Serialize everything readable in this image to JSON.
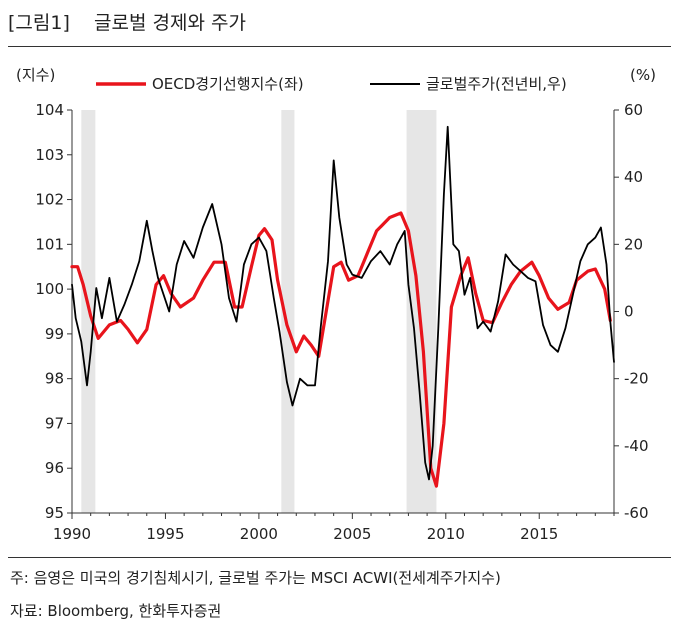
{
  "header": {
    "title": "[그림1]    글로벌 경제와 주가"
  },
  "notes": {
    "note": "주: 음영은 미국의 경기침체시기, 글로벌 주가는 MSCI ACWI(전세계주가지수)",
    "source": "자료: Bloomberg, 한화투자증권"
  },
  "chart_data": {
    "type": "line",
    "title": "글로벌 경제와 주가",
    "left_unit": "(지수)",
    "right_unit": "(%)",
    "x_ticks": [
      1990,
      1995,
      2000,
      2005,
      2010,
      2015
    ],
    "xlim": [
      1990,
      2019
    ],
    "ylim_left": [
      95,
      104
    ],
    "ylim_right": [
      -60,
      60
    ],
    "left_ticks": [
      95,
      96,
      97,
      98,
      99,
      100,
      101,
      102,
      103,
      104
    ],
    "right_ticks": [
      -60,
      -40,
      -20,
      0,
      20,
      40,
      60
    ],
    "legend_position": "top",
    "recession_shading": [
      [
        1990.5,
        1991.25
      ],
      [
        2001.2,
        2001.9
      ],
      [
        2007.9,
        2009.5
      ]
    ],
    "colors": {
      "oecd": "#e8141c",
      "stock": "#000000",
      "shade": "#e6e6e6"
    },
    "series": [
      {
        "name": "OECD경기선행지수(좌)",
        "axis": "left",
        "x": [
          1990,
          1990.3,
          1990.6,
          1991,
          1991.4,
          1992,
          1992.6,
          1993,
          1993.5,
          1994,
          1994.5,
          1994.9,
          1995.3,
          1995.8,
          1996.5,
          1997,
          1997.6,
          1998.2,
          1998.7,
          1999.1,
          1999.6,
          2000,
          2000.3,
          2000.7,
          2001,
          2001.5,
          2002,
          2002.4,
          2002.8,
          2003.2,
          2003.6,
          2004,
          2004.4,
          2004.8,
          2005.3,
          2005.8,
          2006.3,
          2007,
          2007.6,
          2008,
          2008.4,
          2008.8,
          2009.2,
          2009.5,
          2009.9,
          2010.3,
          2010.8,
          2011.2,
          2011.6,
          2012,
          2012.5,
          2013,
          2013.5,
          2014,
          2014.6,
          2015,
          2015.5,
          2016,
          2016.6,
          2017,
          2017.6,
          2018,
          2018.5,
          2018.8
        ],
        "values": [
          100.5,
          100.5,
          100.1,
          99.4,
          98.9,
          99.2,
          99.3,
          99.1,
          98.8,
          99.1,
          100.1,
          100.3,
          99.9,
          99.6,
          99.8,
          100.2,
          100.6,
          100.6,
          99.6,
          99.6,
          100.5,
          101.2,
          101.35,
          101.1,
          100.2,
          99.2,
          98.6,
          98.95,
          98.75,
          98.5,
          99.5,
          100.5,
          100.6,
          100.2,
          100.3,
          100.8,
          101.3,
          101.6,
          101.7,
          101.3,
          100.3,
          98.6,
          96.0,
          95.6,
          97.0,
          99.6,
          100.3,
          100.7,
          99.9,
          99.3,
          99.25,
          99.7,
          100.1,
          100.4,
          100.6,
          100.3,
          99.8,
          99.55,
          99.7,
          100.2,
          100.4,
          100.45,
          100.0,
          99.3
        ]
      },
      {
        "name": "글로벌주가(전년비,우)",
        "axis": "right",
        "x": [
          1990,
          1990.2,
          1990.5,
          1990.8,
          1991,
          1991.3,
          1991.6,
          1992,
          1992.4,
          1992.8,
          1993.2,
          1993.6,
          1994,
          1994.3,
          1994.6,
          1994.9,
          1995.2,
          1995.6,
          1996,
          1996.5,
          1997,
          1997.5,
          1998,
          1998.4,
          1998.8,
          1999.2,
          1999.6,
          2000,
          2000.4,
          2000.8,
          2001.1,
          2001.5,
          2001.8,
          2002.2,
          2002.6,
          2003,
          2003.3,
          2003.7,
          2004,
          2004.3,
          2004.7,
          2005,
          2005.5,
          2006,
          2006.5,
          2007,
          2007.4,
          2007.8,
          2008,
          2008.3,
          2008.6,
          2008.9,
          2009.1,
          2009.3,
          2009.6,
          2009.9,
          2010.1,
          2010.4,
          2010.7,
          2011,
          2011.3,
          2011.7,
          2012,
          2012.4,
          2012.8,
          2013.2,
          2013.6,
          2014,
          2014.4,
          2014.8,
          2015.2,
          2015.6,
          2016,
          2016.4,
          2016.8,
          2017.2,
          2017.6,
          2018,
          2018.3,
          2018.6,
          2018.8,
          2019
        ],
        "values": [
          8,
          -2,
          -9,
          -22,
          -12,
          7,
          -2,
          10,
          -3,
          2,
          8,
          15,
          27,
          18,
          10,
          5,
          0,
          14,
          21,
          16,
          25,
          32,
          20,
          4,
          -3,
          14,
          20,
          22,
          18,
          4,
          -6,
          -21,
          -28,
          -20,
          -22,
          -22,
          -5,
          15,
          45,
          28,
          14,
          11,
          10,
          15,
          18,
          14,
          20,
          24,
          8,
          -5,
          -24,
          -45,
          -50,
          -40,
          -5,
          35,
          55,
          20,
          18,
          5,
          10,
          -5,
          -3,
          -6,
          3,
          17,
          14,
          12,
          10,
          9,
          -4,
          -10,
          -12,
          -5,
          5,
          15,
          20,
          22,
          25,
          14,
          -3,
          -15
        ]
      }
    ]
  }
}
